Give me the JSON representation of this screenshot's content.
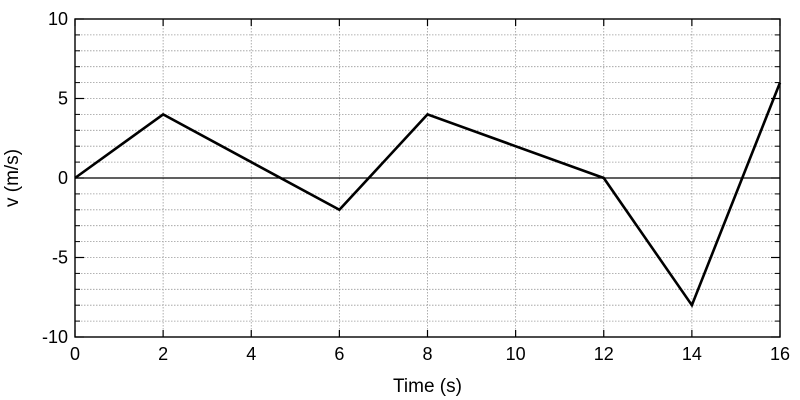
{
  "chart_data": {
    "type": "line",
    "xlabel": "Time (s)",
    "ylabel": "v (m/s)",
    "xlim": [
      0,
      16
    ],
    "ylim": [
      -10,
      10
    ],
    "x_ticks": [
      0,
      2,
      4,
      6,
      8,
      10,
      12,
      14,
      16
    ],
    "y_ticks": [
      -10,
      -5,
      0,
      5,
      10
    ],
    "x_tick_labels": [
      "0",
      "2",
      "4",
      "6",
      "8",
      "10",
      "12",
      "14",
      "16"
    ],
    "y_tick_labels": [
      "-10",
      "-5",
      "0",
      "5",
      "10"
    ],
    "y_minor_step": 1,
    "grid": true,
    "zero_line": true,
    "series": [
      {
        "x": [
          0,
          2,
          6,
          8,
          12,
          14,
          16
        ],
        "y": [
          0,
          4,
          -2,
          4,
          0,
          -8,
          6
        ],
        "color": "#000000"
      }
    ]
  }
}
